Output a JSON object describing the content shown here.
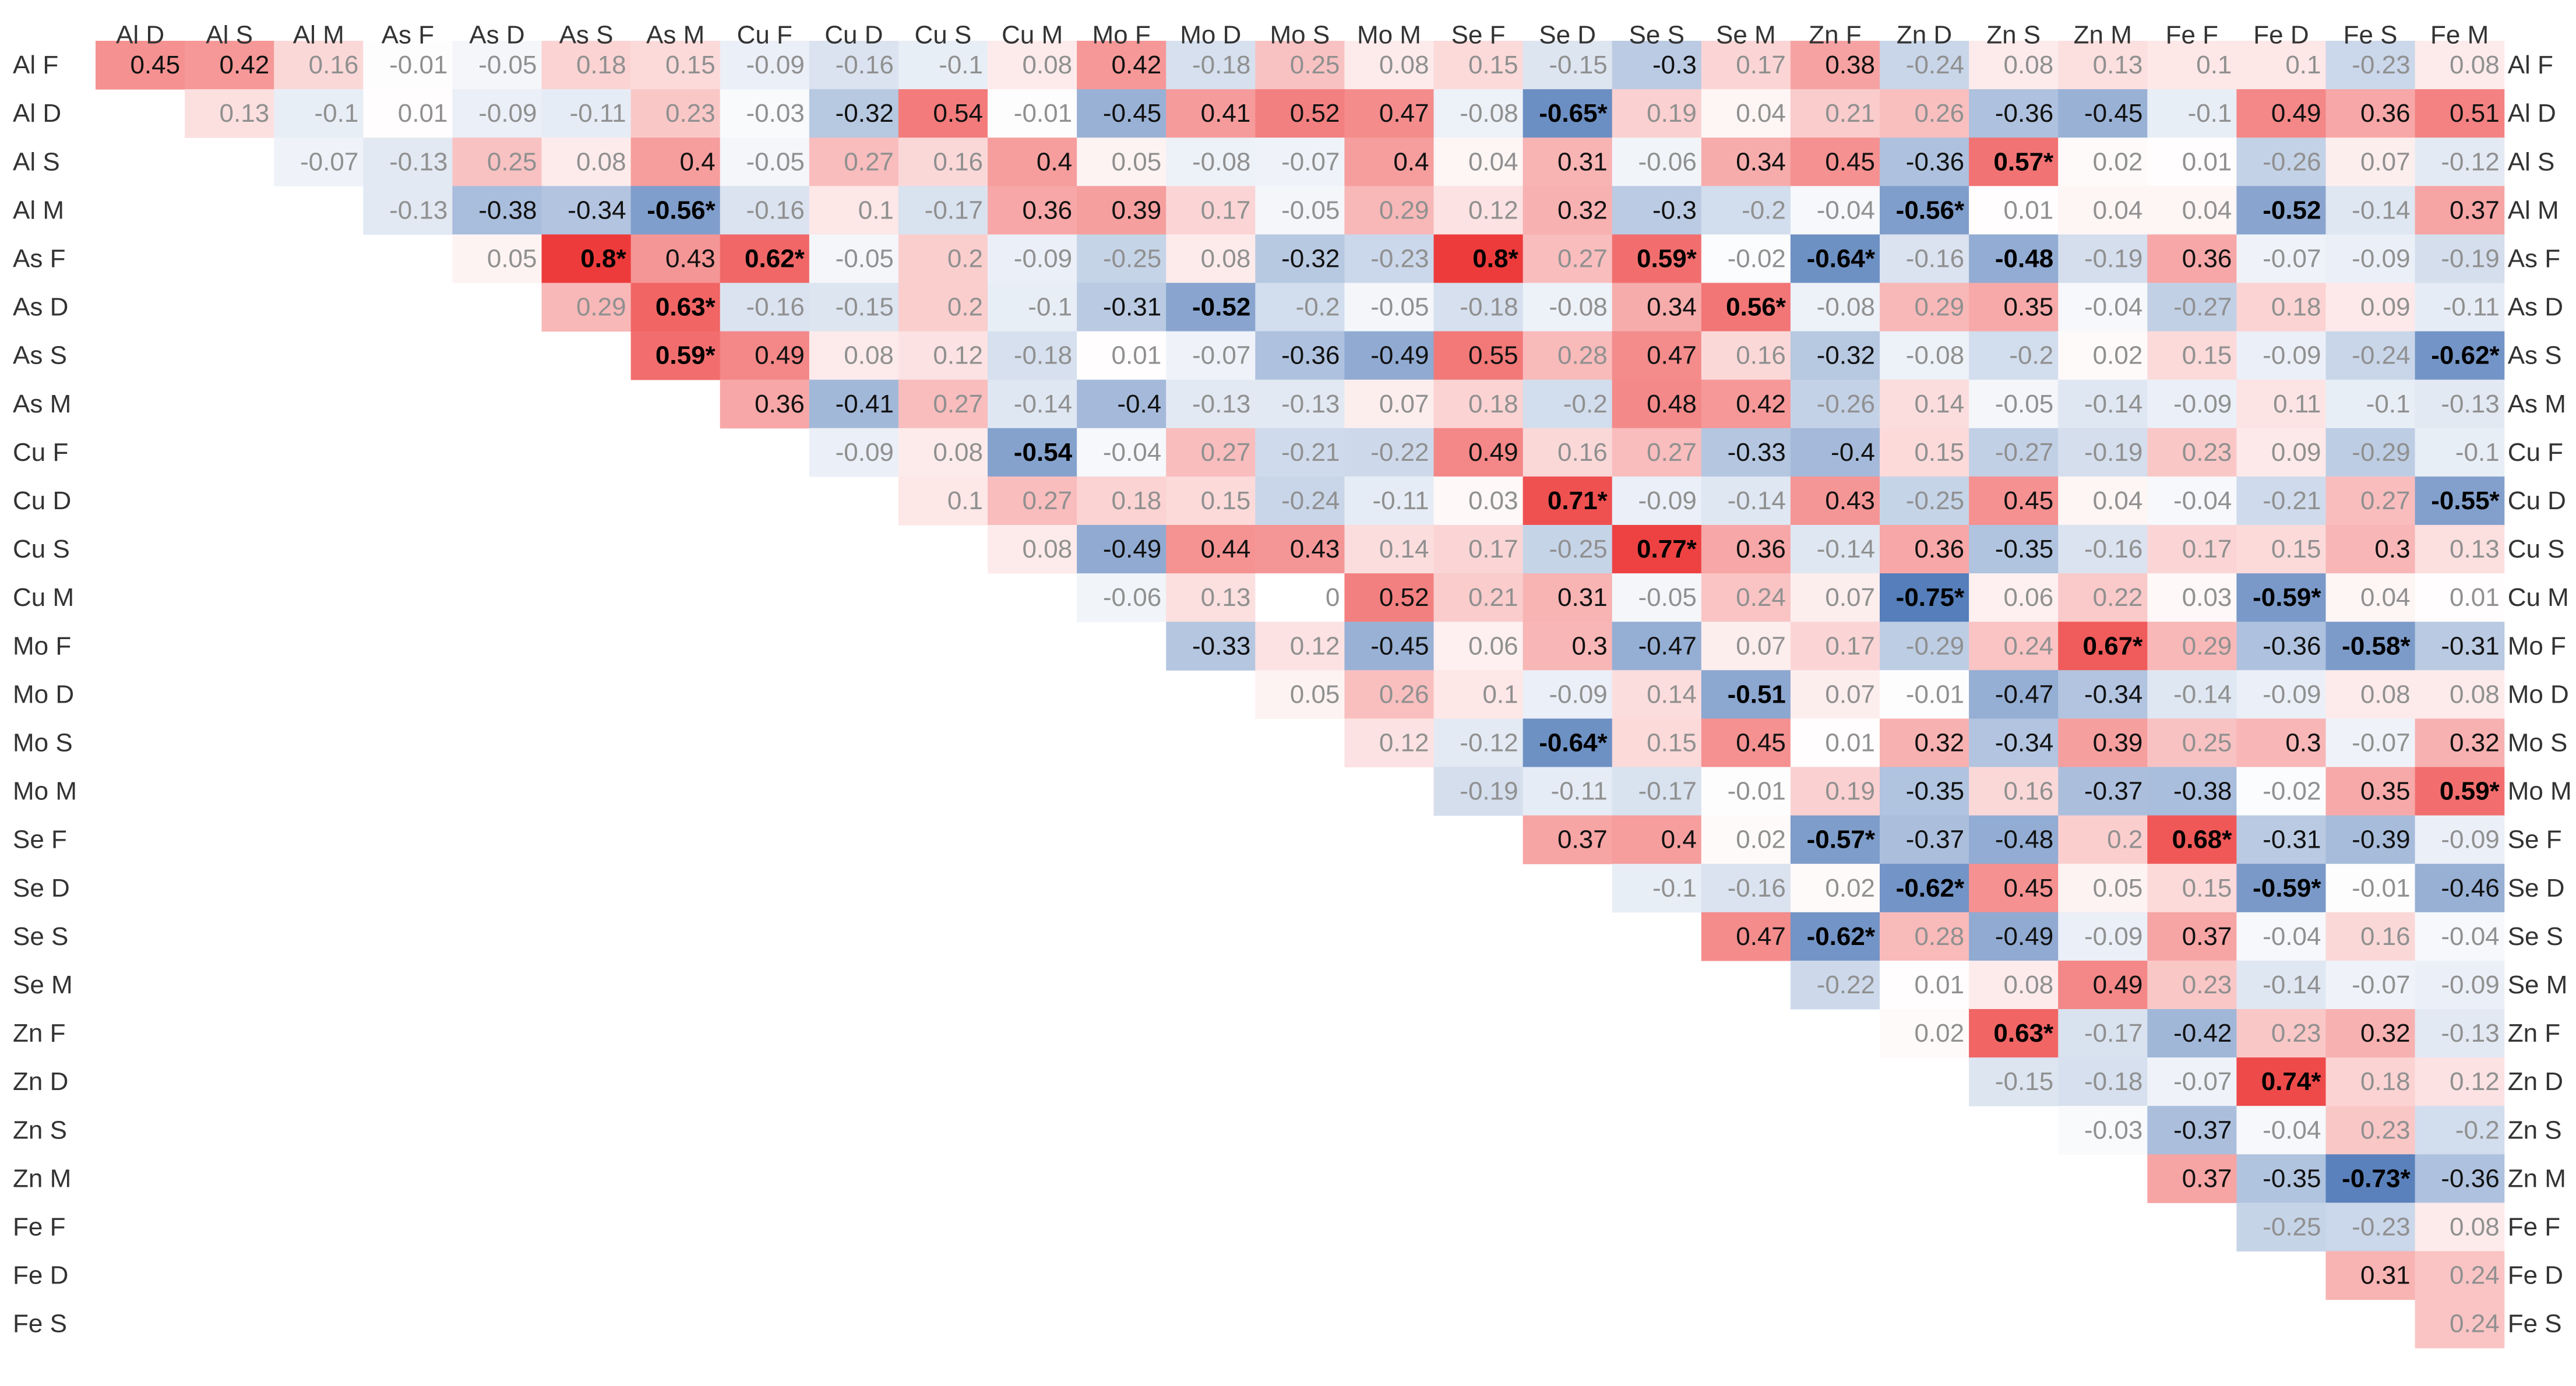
{
  "chart_data": {
    "type": "heatmap",
    "title": "",
    "color_scale": {
      "negative": "#4a75b5",
      "zero": "#ffffff",
      "positive": "#ed3b3b",
      "domain": [
        -0.8,
        0.8
      ]
    },
    "colors": {
      "significant_text": "#000000",
      "strong_text": "#111111",
      "weak_text": "#909090"
    },
    "columns": [
      "Al D",
      "Al S",
      "Al M",
      "As F",
      "As D",
      "As S",
      "As M",
      "Cu F",
      "Cu D",
      "Cu S",
      "Cu M",
      "Mo F",
      "Mo D",
      "Mo S",
      "Mo M",
      "Se F",
      "Se D",
      "Se S",
      "Se M",
      "Zn F",
      "Zn D",
      "Zn S",
      "Zn M",
      "Fe F",
      "Fe D",
      "Fe S",
      "Fe M"
    ],
    "rows": [
      "Al F",
      "Al D",
      "Al S",
      "Al M",
      "As F",
      "As D",
      "As S",
      "As M",
      "Cu F",
      "Cu D",
      "Cu S",
      "Cu M",
      "Mo F",
      "Mo D",
      "Mo S",
      "Mo M",
      "Se F",
      "Se D",
      "Se S",
      "Se M",
      "Zn F",
      "Zn D",
      "Zn S",
      "Zn M",
      "Fe F",
      "Fe D",
      "Fe S"
    ],
    "right_labels": [
      "Al F",
      "Al D",
      "Al S",
      "Al M",
      "As F",
      "As D",
      "As S",
      "As M",
      "Cu F",
      "Cu D",
      "Cu S",
      "Cu M",
      "Mo F",
      "Mo D",
      "Mo S",
      "Mo M",
      "Se F",
      "Se D",
      "Se S",
      "Se M",
      "Zn F",
      "Zn D",
      "Zn S",
      "Zn M",
      "Fe F",
      "Fe D",
      "Fe S"
    ],
    "values": [
      [
        0.45,
        0.42,
        0.16,
        -0.01,
        -0.05,
        0.18,
        0.15,
        -0.09,
        -0.16,
        -0.1,
        0.08,
        0.42,
        -0.18,
        0.25,
        0.08,
        0.15,
        -0.15,
        -0.3,
        0.17,
        0.38,
        -0.24,
        0.08,
        0.13,
        0.1,
        0.1,
        -0.23,
        0.08
      ],
      [
        null,
        0.13,
        -0.1,
        0.01,
        -0.09,
        -0.11,
        0.23,
        -0.03,
        -0.32,
        0.54,
        -0.01,
        -0.45,
        0.41,
        0.52,
        0.47,
        -0.08,
        -0.65,
        0.19,
        0.04,
        0.21,
        0.26,
        -0.36,
        -0.45,
        -0.1,
        0.49,
        0.36,
        0.51
      ],
      [
        null,
        null,
        -0.07,
        -0.13,
        0.25,
        0.08,
        0.4,
        -0.05,
        0.27,
        0.16,
        0.4,
        0.05,
        -0.08,
        -0.07,
        0.4,
        0.04,
        0.31,
        -0.06,
        0.34,
        0.45,
        -0.36,
        0.57,
        0.02,
        0.01,
        -0.26,
        0.07,
        -0.12
      ],
      [
        null,
        null,
        null,
        -0.13,
        -0.38,
        -0.34,
        -0.56,
        -0.16,
        0.1,
        -0.17,
        0.36,
        0.39,
        0.17,
        -0.05,
        0.29,
        0.12,
        0.32,
        -0.3,
        -0.2,
        -0.04,
        -0.56,
        0.01,
        0.04,
        0.04,
        -0.52,
        -0.14,
        0.37
      ],
      [
        null,
        null,
        null,
        null,
        0.05,
        0.8,
        0.43,
        0.62,
        -0.05,
        0.2,
        -0.09,
        -0.25,
        0.08,
        -0.32,
        -0.23,
        0.8,
        0.27,
        0.59,
        -0.02,
        -0.64,
        -0.16,
        -0.48,
        -0.19,
        0.36,
        -0.07,
        -0.09,
        -0.19
      ],
      [
        null,
        null,
        null,
        null,
        null,
        0.29,
        0.63,
        -0.16,
        -0.15,
        0.2,
        -0.1,
        -0.31,
        -0.52,
        -0.2,
        -0.05,
        -0.18,
        -0.08,
        0.34,
        0.56,
        -0.08,
        0.29,
        0.35,
        -0.04,
        -0.27,
        0.18,
        0.09,
        -0.11
      ],
      [
        null,
        null,
        null,
        null,
        null,
        null,
        0.59,
        0.49,
        0.08,
        0.12,
        -0.18,
        0.01,
        -0.07,
        -0.36,
        -0.49,
        0.55,
        0.28,
        0.47,
        0.16,
        -0.32,
        -0.08,
        -0.2,
        0.02,
        0.15,
        -0.09,
        -0.24,
        -0.62
      ],
      [
        null,
        null,
        null,
        null,
        null,
        null,
        null,
        0.36,
        -0.41,
        0.27,
        -0.14,
        -0.4,
        -0.13,
        -0.13,
        0.07,
        0.18,
        -0.2,
        0.48,
        0.42,
        -0.26,
        0.14,
        -0.05,
        -0.14,
        -0.09,
        0.11,
        -0.1,
        -0.13
      ],
      [
        null,
        null,
        null,
        null,
        null,
        null,
        null,
        null,
        -0.09,
        0.08,
        -0.54,
        -0.04,
        0.27,
        -0.21,
        -0.22,
        0.49,
        0.16,
        0.27,
        -0.33,
        -0.4,
        0.15,
        -0.27,
        -0.19,
        0.23,
        0.09,
        -0.29,
        -0.1
      ],
      [
        null,
        null,
        null,
        null,
        null,
        null,
        null,
        null,
        null,
        0.1,
        0.27,
        0.18,
        0.15,
        -0.24,
        -0.11,
        0.03,
        0.71,
        -0.09,
        -0.14,
        0.43,
        -0.25,
        0.45,
        0.04,
        -0.04,
        -0.21,
        0.27,
        -0.55
      ],
      [
        null,
        null,
        null,
        null,
        null,
        null,
        null,
        null,
        null,
        null,
        0.08,
        -0.49,
        0.44,
        0.43,
        0.14,
        0.17,
        -0.25,
        0.77,
        0.36,
        -0.14,
        0.36,
        -0.35,
        -0.16,
        0.17,
        0.15,
        0.3,
        0.13
      ],
      [
        null,
        null,
        null,
        null,
        null,
        null,
        null,
        null,
        null,
        null,
        null,
        -0.06,
        0.13,
        0,
        0.52,
        0.21,
        0.31,
        -0.05,
        0.24,
        0.07,
        -0.75,
        0.06,
        0.22,
        0.03,
        -0.59,
        0.04,
        0.01
      ],
      [
        null,
        null,
        null,
        null,
        null,
        null,
        null,
        null,
        null,
        null,
        null,
        null,
        -0.33,
        0.12,
        -0.45,
        0.06,
        0.3,
        -0.47,
        0.07,
        0.17,
        -0.29,
        0.24,
        0.67,
        0.29,
        -0.36,
        -0.58,
        -0.31
      ],
      [
        null,
        null,
        null,
        null,
        null,
        null,
        null,
        null,
        null,
        null,
        null,
        null,
        null,
        0.05,
        0.26,
        0.1,
        -0.09,
        0.14,
        -0.51,
        0.07,
        -0.01,
        -0.47,
        -0.34,
        -0.14,
        -0.09,
        0.08,
        0.08
      ],
      [
        null,
        null,
        null,
        null,
        null,
        null,
        null,
        null,
        null,
        null,
        null,
        null,
        null,
        null,
        0.12,
        -0.12,
        -0.64,
        0.15,
        0.45,
        0.01,
        0.32,
        -0.34,
        0.39,
        0.25,
        0.3,
        -0.07,
        0.32
      ],
      [
        null,
        null,
        null,
        null,
        null,
        null,
        null,
        null,
        null,
        null,
        null,
        null,
        null,
        null,
        null,
        -0.19,
        -0.11,
        -0.17,
        -0.01,
        0.19,
        -0.35,
        0.16,
        -0.37,
        -0.38,
        -0.02,
        0.35,
        0.59
      ],
      [
        null,
        null,
        null,
        null,
        null,
        null,
        null,
        null,
        null,
        null,
        null,
        null,
        null,
        null,
        null,
        null,
        0.37,
        0.4,
        0.02,
        -0.57,
        -0.37,
        -0.48,
        0.2,
        0.68,
        -0.31,
        -0.39,
        -0.09
      ],
      [
        null,
        null,
        null,
        null,
        null,
        null,
        null,
        null,
        null,
        null,
        null,
        null,
        null,
        null,
        null,
        null,
        null,
        -0.1,
        -0.16,
        0.02,
        -0.62,
        0.45,
        0.05,
        0.15,
        -0.59,
        -0.01,
        -0.46
      ],
      [
        null,
        null,
        null,
        null,
        null,
        null,
        null,
        null,
        null,
        null,
        null,
        null,
        null,
        null,
        null,
        null,
        null,
        null,
        0.47,
        -0.62,
        0.28,
        -0.49,
        -0.09,
        0.37,
        -0.04,
        0.16,
        -0.04
      ],
      [
        null,
        null,
        null,
        null,
        null,
        null,
        null,
        null,
        null,
        null,
        null,
        null,
        null,
        null,
        null,
        null,
        null,
        null,
        null,
        -0.22,
        0.01,
        0.08,
        0.49,
        0.23,
        -0.14,
        -0.07,
        -0.09
      ],
      [
        null,
        null,
        null,
        null,
        null,
        null,
        null,
        null,
        null,
        null,
        null,
        null,
        null,
        null,
        null,
        null,
        null,
        null,
        null,
        null,
        0.02,
        0.63,
        -0.17,
        -0.42,
        0.23,
        0.32,
        -0.13
      ],
      [
        null,
        null,
        null,
        null,
        null,
        null,
        null,
        null,
        null,
        null,
        null,
        null,
        null,
        null,
        null,
        null,
        null,
        null,
        null,
        null,
        null,
        -0.15,
        -0.18,
        -0.07,
        0.74,
        0.18,
        0.12
      ],
      [
        null,
        null,
        null,
        null,
        null,
        null,
        null,
        null,
        null,
        null,
        null,
        null,
        null,
        null,
        null,
        null,
        null,
        null,
        null,
        null,
        null,
        null,
        -0.03,
        -0.37,
        -0.04,
        0.23,
        -0.2
      ],
      [
        null,
        null,
        null,
        null,
        null,
        null,
        null,
        null,
        null,
        null,
        null,
        null,
        null,
        null,
        null,
        null,
        null,
        null,
        null,
        null,
        null,
        null,
        null,
        0.37,
        -0.35,
        -0.73,
        -0.36
      ],
      [
        null,
        null,
        null,
        null,
        null,
        null,
        null,
        null,
        null,
        null,
        null,
        null,
        null,
        null,
        null,
        null,
        null,
        null,
        null,
        null,
        null,
        null,
        null,
        null,
        -0.25,
        -0.23,
        0.08
      ],
      [
        null,
        null,
        null,
        null,
        null,
        null,
        null,
        null,
        null,
        null,
        null,
        null,
        null,
        null,
        null,
        null,
        null,
        null,
        null,
        null,
        null,
        null,
        null,
        null,
        null,
        0.31,
        0.24
      ],
      [
        null,
        null,
        null,
        null,
        null,
        null,
        null,
        null,
        null,
        null,
        null,
        null,
        null,
        null,
        null,
        null,
        null,
        null,
        null,
        null,
        null,
        null,
        null,
        null,
        null,
        null,
        0.24
      ]
    ],
    "significant": [
      [
        "Al D",
        "Se D"
      ],
      [
        "Al S",
        "Zn S"
      ],
      [
        "Al M",
        "As M"
      ],
      [
        "Al M",
        "Zn D"
      ],
      [
        "As F",
        "As S"
      ],
      [
        "As F",
        "Cu F"
      ],
      [
        "As F",
        "Se F"
      ],
      [
        "As F",
        "Se S"
      ],
      [
        "As F",
        "Zn F"
      ],
      [
        "As D",
        "As M"
      ],
      [
        "As D",
        "Se M"
      ],
      [
        "As S",
        "As M"
      ],
      [
        "As S",
        "Fe M"
      ],
      [
        "Cu D",
        "Se D"
      ],
      [
        "Cu D",
        "Fe M"
      ],
      [
        "Cu S",
        "Se S"
      ],
      [
        "Cu M",
        "Zn D"
      ],
      [
        "Cu M",
        "Fe D"
      ],
      [
        "Mo F",
        "Zn M"
      ],
      [
        "Mo F",
        "Fe S"
      ],
      [
        "Mo S",
        "Se D"
      ],
      [
        "Mo M",
        "Fe M"
      ],
      [
        "Se F",
        "Zn F"
      ],
      [
        "Se F",
        "Fe F"
      ],
      [
        "Se D",
        "Zn D"
      ],
      [
        "Se D",
        "Fe D"
      ],
      [
        "Se S",
        "Zn F"
      ],
      [
        "Zn F",
        "Zn S"
      ],
      [
        "Zn D",
        "Fe D"
      ],
      [
        "Zn M",
        "Fe S"
      ]
    ],
    "bold_only": [
      [
        "Al M",
        "Fe D"
      ],
      [
        "As F",
        "Zn S"
      ],
      [
        "As D",
        "Mo D"
      ],
      [
        "Cu F",
        "Cu M"
      ],
      [
        "Mo D",
        "Se M"
      ]
    ]
  }
}
